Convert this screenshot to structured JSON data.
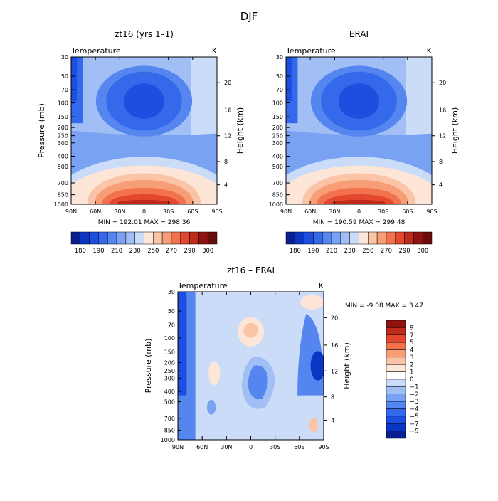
{
  "figure": {
    "title": "DJF"
  },
  "chart_data": [
    {
      "type": "heatmap",
      "title": "zt16 (yrs 1–1)",
      "subtitle_left": "Temperature",
      "subtitle_right": "K",
      "ylabel": "Pressure (mb)",
      "ylabel_right": "Height (km)",
      "x_ticks": [
        "90N",
        "60N",
        "30N",
        "0",
        "30S",
        "60S",
        "90S"
      ],
      "y_ticks": [
        "30",
        "50",
        "70",
        "100",
        "150",
        "200",
        "250",
        "300",
        "400",
        "500",
        "700",
        "850",
        "1000"
      ],
      "height_ticks": [
        "20",
        "16",
        "12",
        "8",
        "4"
      ],
      "stats_text": "MIN = 192.01  MAX = 298.36",
      "min": 192.01,
      "max": 298.36,
      "colorbar_labels": [
        "180",
        "190",
        "210",
        "230",
        "250",
        "270",
        "290",
        "300"
      ]
    },
    {
      "type": "heatmap",
      "title": "ERAI",
      "subtitle_left": "Temperature",
      "subtitle_right": "K",
      "ylabel": "",
      "ylabel_right": "Height (km)",
      "x_ticks": [
        "90N",
        "60N",
        "30N",
        "0",
        "30S",
        "60S",
        "90S"
      ],
      "y_ticks": [
        "30",
        "50",
        "70",
        "100",
        "150",
        "200",
        "250",
        "300",
        "400",
        "500",
        "700",
        "850",
        "1000"
      ],
      "height_ticks": [
        "20",
        "16",
        "12",
        "8",
        "4"
      ],
      "stats_text": "MIN = 190.59  MAX = 299.48",
      "min": 190.59,
      "max": 299.48,
      "colorbar_labels": [
        "180",
        "190",
        "210",
        "230",
        "250",
        "270",
        "290",
        "300"
      ]
    },
    {
      "type": "heatmap",
      "title": "zt16 – ERAI",
      "subtitle_left": "Temperature",
      "subtitle_right": "K",
      "ylabel": "Pressure (mb)",
      "ylabel_right": "Height (km)",
      "x_ticks": [
        "90N",
        "60N",
        "30N",
        "0",
        "30S",
        "60S",
        "90S"
      ],
      "y_ticks": [
        "30",
        "50",
        "70",
        "100",
        "150",
        "200",
        "250",
        "300",
        "400",
        "500",
        "700",
        "850",
        "1000"
      ],
      "height_ticks": [
        "20",
        "16",
        "12",
        "8",
        "4"
      ],
      "stats_text": "MIN =  -9.08  MAX =   3.47",
      "min": -9.08,
      "max": 3.47,
      "colorbar_labels": [
        "9",
        "7",
        "5",
        "4",
        "3",
        "2",
        "1",
        "0",
        "−1",
        "−2",
        "−3",
        "−4",
        "−5",
        "−7",
        "−9"
      ]
    }
  ],
  "colors": {
    "abs_scale": [
      "#08208f",
      "#0b35c4",
      "#1c4fe0",
      "#3569eb",
      "#5585ef",
      "#7aa2f3",
      "#a2bff5",
      "#cbdcf8",
      "#fde6d8",
      "#fbc4a6",
      "#f79e77",
      "#f2724d",
      "#e4472d",
      "#bf2a1a",
      "#8f1411",
      "#6a0c0c"
    ],
    "diff_scale": [
      "#8f1411",
      "#bf2a1a",
      "#e4472d",
      "#f2724d",
      "#f79e77",
      "#fbc4a6",
      "#fde6d8",
      "#ffffff",
      "#cbdcf8",
      "#a2bff5",
      "#7aa2f3",
      "#5585ef",
      "#3569eb",
      "#1c4fe0",
      "#0b35c4",
      "#08208f"
    ]
  }
}
